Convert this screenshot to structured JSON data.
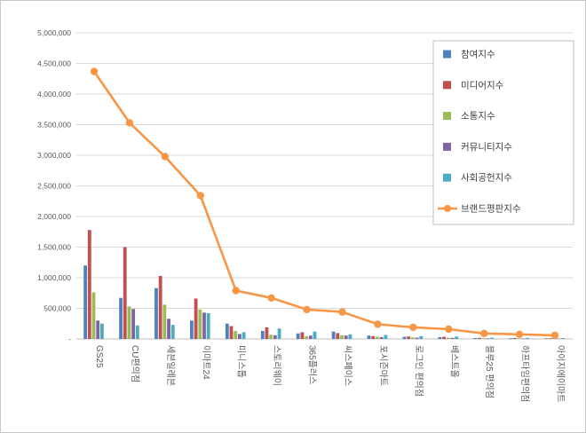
{
  "chart": {
    "colors": {
      "gridline": "#D9D9D9",
      "axis": "#BFBFBF",
      "tick_text": "#595959",
      "label_text": "#595959",
      "legend_text": "#404040",
      "legend_border": "#BFBFBF",
      "background": "#FFFFFF"
    }
  },
  "chart_data": {
    "type": "combo-bar-line",
    "title": "",
    "xlabel": "",
    "ylabel": "",
    "ylim": [
      0,
      5000000
    ],
    "ytick_step": 500000,
    "ytick_labels": [
      "-",
      "500,000",
      "1,000,000",
      "1,500,000",
      "2,000,000",
      "2,500,000",
      "3,000,000",
      "3,500,000",
      "4,000,000",
      "4,500,000",
      "5,000,000"
    ],
    "grid": true,
    "legend_position": "right-top",
    "categories": [
      "GS25",
      "CU편의점",
      "세븐일레븐",
      "이마트24",
      "미니스톱",
      "스토리웨이",
      "365플러스",
      "씨스페이스",
      "포시즌마트",
      "로그인 편의점",
      "베스트올",
      "블루25 편의점",
      "하프타임편의점",
      "아이지에이마트"
    ],
    "series": [
      {
        "name": "참여지수",
        "type": "bar",
        "color": "#4F81BD",
        "values": [
          1200000,
          670000,
          830000,
          300000,
          250000,
          130000,
          90000,
          120000,
          55000,
          35000,
          30000,
          15000,
          12000,
          10000
        ]
      },
      {
        "name": "미디어지수",
        "type": "bar",
        "color": "#C0504D",
        "values": [
          1780000,
          1500000,
          1030000,
          660000,
          210000,
          190000,
          110000,
          95000,
          45000,
          40000,
          35000,
          18000,
          15000,
          12000
        ]
      },
      {
        "name": "소통지수",
        "type": "bar",
        "color": "#9BBB59",
        "values": [
          760000,
          530000,
          560000,
          480000,
          130000,
          70000,
          45000,
          60000,
          35000,
          25000,
          20000,
          12000,
          10000,
          8000
        ]
      },
      {
        "name": "커뮤니티지수",
        "type": "bar",
        "color": "#8064A2",
        "values": [
          300000,
          490000,
          330000,
          430000,
          80000,
          60000,
          55000,
          55000,
          30000,
          20000,
          18000,
          10000,
          8000,
          7000
        ]
      },
      {
        "name": "사회공헌지수",
        "type": "bar",
        "color": "#4BACC6",
        "values": [
          250000,
          220000,
          230000,
          420000,
          110000,
          170000,
          120000,
          75000,
          65000,
          45000,
          40000,
          20000,
          18000,
          15000
        ]
      },
      {
        "name": "브랜드평판지수",
        "type": "line",
        "color": "#F79646",
        "values": [
          4370000,
          3530000,
          2980000,
          2340000,
          790000,
          670000,
          480000,
          440000,
          240000,
          190000,
          160000,
          90000,
          75000,
          60000
        ]
      }
    ]
  }
}
